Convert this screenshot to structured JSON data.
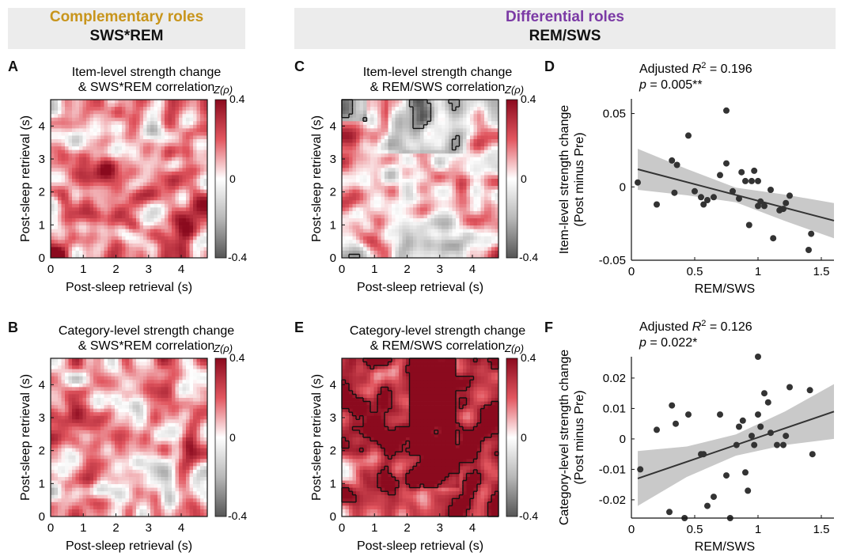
{
  "headers": {
    "left": {
      "title": "Complementary roles",
      "subtitle": "SWS*REM",
      "color": "#c8951c"
    },
    "right": {
      "title": "Differential roles",
      "subtitle": "REM/SWS",
      "color": "#7b3aa5"
    }
  },
  "panel_letters": [
    "A",
    "B",
    "C",
    "D",
    "E",
    "F"
  ],
  "colorbar": {
    "label": "Z(ρ)",
    "ticks": [
      "0.4",
      "0",
      "-0.4"
    ],
    "low_color": "#555555",
    "mid_color": "#ffffff",
    "high_color": "#8b0a1e"
  },
  "heatmaps": {
    "A": {
      "title_line1": "Item-level strength change",
      "title_line2": "& SWS*REM correlation",
      "xlabel": "Post-sleep retrieval (s)",
      "ylabel": "Post-sleep retrieval (s)",
      "xticks": [
        "0",
        "1",
        "2",
        "3",
        "4"
      ],
      "yticks": [
        "0",
        "1",
        "2",
        "3",
        "4"
      ],
      "seed": 11,
      "bias": 0.05,
      "has_contour": false
    },
    "B": {
      "title_line1": "Category-level strength change",
      "title_line2": "& SWS*REM correlation",
      "xlabel": "Post-sleep retrieval (s)",
      "ylabel": "Post-sleep retrieval (s)",
      "xticks": [
        "0",
        "1",
        "2",
        "3",
        "4"
      ],
      "yticks": [
        "0",
        "1",
        "2",
        "3",
        "4"
      ],
      "seed": 23,
      "bias": 0.02,
      "has_contour": false
    },
    "C": {
      "title_line1": "Item-level strength change",
      "title_line2": "& REM/SWS correlation",
      "xlabel": "Post-sleep retrieval (s)",
      "ylabel": "Post-sleep retrieval (s)",
      "xticks": [
        "0",
        "1",
        "2",
        "3",
        "4"
      ],
      "yticks": [
        "0",
        "1",
        "2",
        "3",
        "4"
      ],
      "seed": 37,
      "bias": -0.05,
      "has_contour": true
    },
    "E": {
      "title_line1": "Category-level strength change",
      "title_line2": "& REM/SWS correlation",
      "xlabel": "Post-sleep retrieval (s)",
      "ylabel": "Post-sleep retrieval (s)",
      "xticks": [
        "0",
        "1",
        "2",
        "3",
        "4"
      ],
      "yticks": [
        "0",
        "1",
        "2",
        "3",
        "4"
      ],
      "seed": 53,
      "bias": 0.22,
      "has_contour": true
    }
  },
  "chart_data": [
    {
      "panel": "D",
      "type": "scatter",
      "annotation": {
        "prefix": "Adjusted ",
        "r2_symbol": "R",
        "r2_sup": "2",
        "r2_value": " = 0.196",
        "p_text": "p = 0.005**"
      },
      "xlabel": "REM/SWS",
      "ylabel_line1": "Item-level strength change",
      "ylabel_line2": "(Post minus Pre)",
      "xlim": [
        0,
        1.6
      ],
      "ylim": [
        -0.05,
        0.06
      ],
      "xticks": [
        0,
        0.5,
        1,
        1.5
      ],
      "xtick_labels": [
        "0",
        "0.5",
        "1",
        "1.5"
      ],
      "yticks": [
        -0.05,
        0,
        0.05
      ],
      "ytick_labels": [
        "-0.05",
        "0",
        "0.05"
      ],
      "fit": {
        "x": [
          0.05,
          1.6
        ],
        "y": [
          0.012,
          -0.023
        ]
      },
      "band_halfwidth": [
        0.014,
        0.009,
        0.005,
        0.009,
        0.012
      ],
      "x": [
        0.05,
        0.2,
        0.32,
        0.34,
        0.36,
        0.45,
        0.5,
        0.55,
        0.57,
        0.6,
        0.65,
        0.7,
        0.75,
        0.75,
        0.8,
        0.85,
        0.87,
        0.9,
        0.93,
        0.95,
        0.97,
        1.0,
        1.0,
        1.02,
        1.05,
        1.1,
        1.12,
        1.17,
        1.2,
        1.22,
        1.25,
        1.4,
        1.42
      ],
      "y": [
        0.003,
        -0.012,
        0.018,
        -0.004,
        0.015,
        0.035,
        -0.003,
        -0.007,
        -0.012,
        -0.009,
        -0.007,
        0.008,
        0.052,
        0.016,
        -0.003,
        -0.008,
        0.01,
        0.004,
        -0.026,
        0.004,
        0.011,
        -0.013,
        0.004,
        -0.01,
        -0.013,
        -0.002,
        -0.035,
        -0.016,
        -0.015,
        -0.011,
        -0.006,
        -0.043,
        -0.032
      ]
    },
    {
      "panel": "F",
      "type": "scatter",
      "annotation": {
        "prefix": "Adjusted ",
        "r2_symbol": "R",
        "r2_sup": "2",
        "r2_value": " = 0.126",
        "p_text": "p = 0.022*"
      },
      "xlabel": "REM/SWS",
      "ylabel_line1": "Category-level strength change",
      "ylabel_line2": "(Post minus Pre)",
      "xlim": [
        0,
        1.6
      ],
      "ylim": [
        -0.026,
        0.027
      ],
      "xticks": [
        0,
        0.5,
        1,
        1.5
      ],
      "xtick_labels": [
        "0",
        "0.5",
        "1",
        "1.5"
      ],
      "yticks": [
        -0.02,
        -0.01,
        0,
        0.01,
        0.02
      ],
      "ytick_labels": [
        "-0.02",
        "-0.01",
        "0",
        "0.01",
        "0.02"
      ],
      "fit": {
        "x": [
          0.05,
          1.6
        ],
        "y": [
          -0.013,
          0.009
        ]
      },
      "band_halfwidth": [
        0.009,
        0.005,
        0.0035,
        0.0055,
        0.009
      ],
      "x": [
        0.07,
        0.2,
        0.3,
        0.32,
        0.35,
        0.42,
        0.45,
        0.55,
        0.57,
        0.6,
        0.65,
        0.7,
        0.75,
        0.78,
        0.83,
        0.85,
        0.88,
        0.9,
        0.92,
        0.95,
        0.97,
        1.0,
        1.0,
        1.02,
        1.05,
        1.08,
        1.1,
        1.15,
        1.2,
        1.22,
        1.25,
        1.41,
        1.43
      ],
      "y": [
        -0.01,
        0.003,
        -0.024,
        0.011,
        0.005,
        -0.026,
        0.008,
        -0.005,
        -0.005,
        -0.022,
        -0.019,
        0.008,
        -0.012,
        -0.026,
        -0.002,
        0.004,
        0.006,
        -0.011,
        -0.017,
        0.001,
        -0.002,
        0.027,
        0.008,
        0.004,
        0.015,
        0.012,
        0.002,
        -0.002,
        -0.002,
        0.001,
        0.017,
        0.016,
        -0.005
      ]
    }
  ]
}
